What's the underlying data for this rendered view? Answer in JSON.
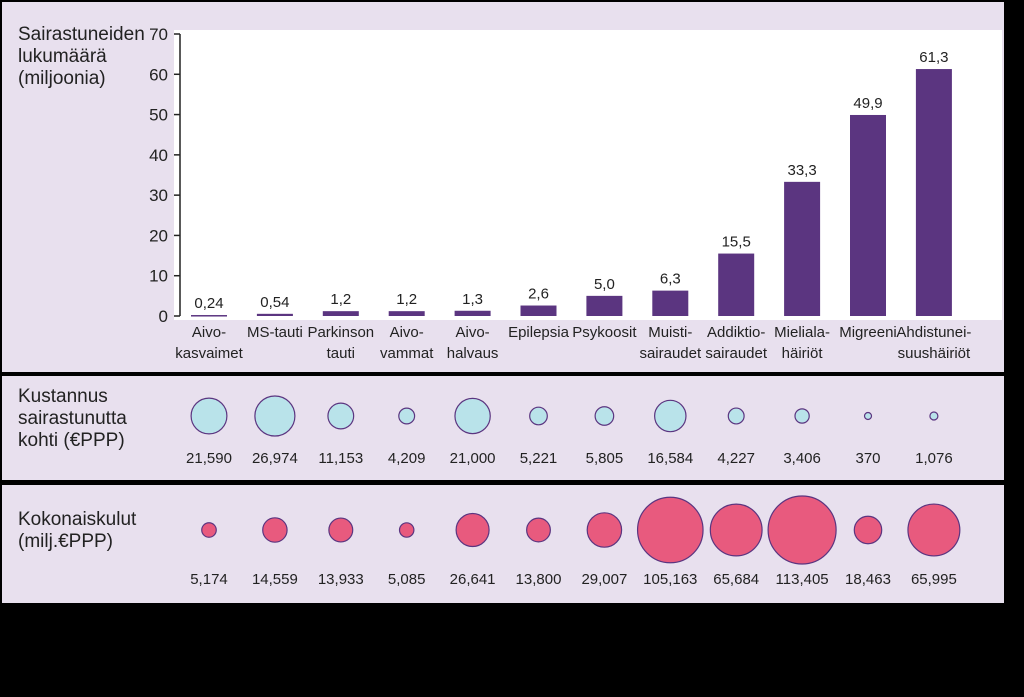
{
  "colors": {
    "bar": "#5b3580",
    "bubble_cost_per_patient": "#b9e3ea",
    "bubble_total": "#e85a7e",
    "panel": "#e8e0ee",
    "border": "#5b3580"
  },
  "chart_data": [
    {
      "type": "bar",
      "ylabel": "Sairastuneiden\nlukumäärä\n(miljoonia)",
      "ylim": [
        0,
        70
      ],
      "yticks": [
        "0",
        "10",
        "20",
        "30",
        "40",
        "50",
        "60",
        "70"
      ],
      "categories": [
        "Aivo-\nkasvaimet",
        "MS-tauti",
        "Parkinson\ntauti",
        "Aivo-\nvammat",
        "Aivo-\nhalvaus",
        "Epilepsia",
        "Psykoosit",
        "Muisti-\nsairaudet",
        "Addiktio-\nsairaudet",
        "Mieliala-\nhäiriöt",
        "Migreeni",
        "Ahdistunei-\nsuushäiriöt"
      ],
      "values": [
        0.24,
        0.54,
        1.2,
        1.2,
        1.3,
        2.6,
        5.0,
        6.3,
        15.5,
        33.3,
        49.9,
        61.3
      ],
      "data_labels": [
        "0,24",
        "0,54",
        "1,2",
        "1,2",
        "1,3",
        "2,6",
        "5,0",
        "6,3",
        "15,5",
        "33,3",
        "49,9",
        "61,3"
      ]
    },
    {
      "type": "bubble",
      "label": "Kustannus\nsairastunutta\nkohti (€PPP)",
      "values": [
        21590,
        26974,
        11153,
        4209,
        21000,
        5221,
        5805,
        16584,
        4227,
        3406,
        370,
        1076
      ],
      "data_labels": [
        "21,590",
        "26,974",
        "11,153",
        "4,209",
        "21,000",
        "5,221",
        "5,805",
        "16,584",
        "4,227",
        "3,406",
        "370",
        "1,076"
      ]
    },
    {
      "type": "bubble",
      "label": "Kokonaiskulut\n(milj.€PPP)",
      "values": [
        5174,
        14559,
        13933,
        5085,
        26641,
        13800,
        29007,
        105163,
        65684,
        113405,
        18463,
        65995
      ],
      "data_labels": [
        "5,174",
        "14,559",
        "13,933",
        "5,085",
        "26,641",
        "13,800",
        "29,007",
        "105,163",
        "65,684",
        "113,405",
        "18,463",
        "65,995"
      ]
    }
  ]
}
